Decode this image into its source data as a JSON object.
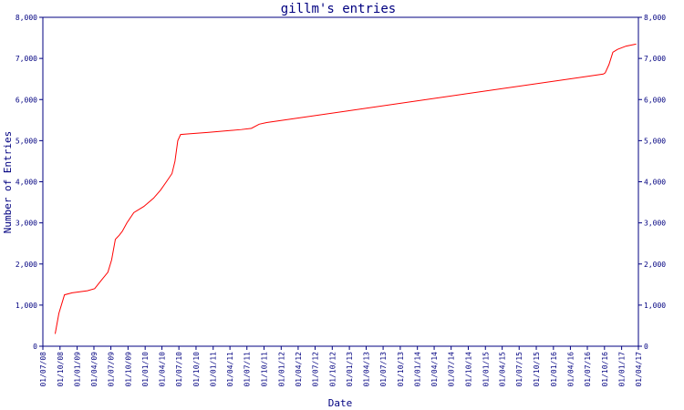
{
  "chart_data": {
    "type": "line",
    "title": "gillm's entries",
    "xlabel": "Date",
    "ylabel": "Number of Entries",
    "ylim": [
      0,
      8000
    ],
    "y_ticks": [
      0,
      1000,
      2000,
      3000,
      4000,
      5000,
      6000,
      7000,
      8000
    ],
    "y_tick_labels": [
      "0",
      "1,000",
      "2,000",
      "3,000",
      "4,000",
      "5,000",
      "6,000",
      "7,000",
      "8,000"
    ],
    "xlim": [
      "2008-07-01",
      "2017-04-01"
    ],
    "x_tick_labels": [
      "01/07/08",
      "01/10/08",
      "01/01/09",
      "01/04/09",
      "01/07/09",
      "01/10/09",
      "01/01/10",
      "01/04/10",
      "01/07/10",
      "01/10/10",
      "01/01/11",
      "01/04/11",
      "01/07/11",
      "01/10/11",
      "01/01/12",
      "01/04/12",
      "01/07/12",
      "01/10/12",
      "01/01/13",
      "01/04/13",
      "01/07/13",
      "01/10/13",
      "01/01/14",
      "01/04/14",
      "01/07/14",
      "01/10/14",
      "01/01/15",
      "01/04/15",
      "01/07/15",
      "01/10/15",
      "01/01/16",
      "01/04/16",
      "01/07/16",
      "01/10/16",
      "01/01/17",
      "01/04/17"
    ],
    "grid": false,
    "series_color": "#ff0000",
    "axis_color": "#000080",
    "series": [
      {
        "x": [
          "2008-09-05",
          "2008-09-25",
          "2008-10-25",
          "2008-12-05",
          "2009-02-25",
          "2009-04-05",
          "2009-05-10",
          "2009-06-15",
          "2009-07-05",
          "2009-07-25",
          "2009-08-15",
          "2009-09-01",
          "2009-09-25",
          "2009-11-01",
          "2009-12-25",
          "2010-02-15",
          "2010-03-25",
          "2010-04-25",
          "2010-05-25",
          "2010-06-10",
          "2010-06-25",
          "2010-07-10",
          "2010-09-01",
          "2010-12-01",
          "2011-06-01",
          "2011-07-25",
          "2011-09-05",
          "2011-10-15",
          "2016-09-25",
          "2016-10-05",
          "2016-10-25",
          "2016-11-15",
          "2016-12-10",
          "2017-01-25",
          "2017-03-20"
        ],
        "y": [
          300,
          800,
          1250,
          1300,
          1350,
          1400,
          1600,
          1800,
          2100,
          2600,
          2700,
          2800,
          3000,
          3250,
          3400,
          3600,
          3800,
          4000,
          4200,
          4500,
          5000,
          5150,
          5170,
          5200,
          5270,
          5300,
          5400,
          5440,
          6620,
          6650,
          6850,
          7150,
          7220,
          7300,
          7350
        ]
      }
    ]
  }
}
